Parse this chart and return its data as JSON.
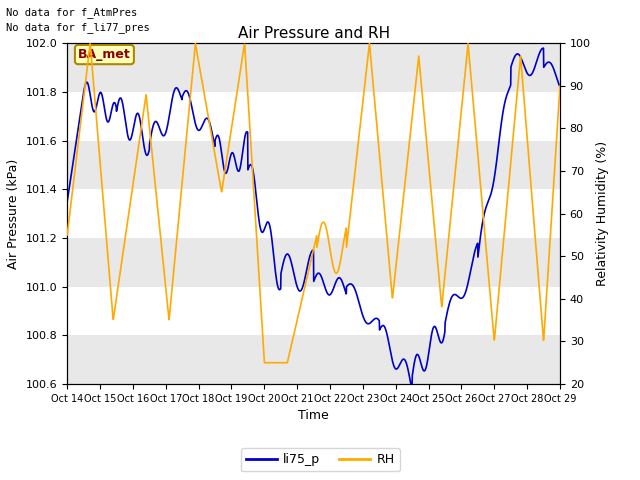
{
  "title": "Air Pressure and RH",
  "xlabel": "Time",
  "ylabel_left": "Air Pressure (kPa)",
  "ylabel_right": "Relativity Humidity (%)",
  "annotation_line1": "No data for f_AtmPres",
  "annotation_line2": "No data for f_li77_pres",
  "box_label": "BA_met",
  "ylim_left": [
    100.6,
    102.0
  ],
  "ylim_right": [
    20,
    100
  ],
  "yticks_left": [
    100.6,
    100.8,
    101.0,
    101.2,
    101.4,
    101.6,
    101.8,
    102.0
  ],
  "yticks_right": [
    20,
    30,
    40,
    50,
    60,
    70,
    80,
    90,
    100
  ],
  "xtick_labels": [
    "Oct 14",
    "Oct 15",
    "Oct 16",
    "Oct 17",
    "Oct 18",
    "Oct 19",
    "Oct 20",
    "Oct 21",
    "Oct 22",
    "Oct 23",
    "Oct 24",
    "Oct 25",
    "Oct 26",
    "Oct 27",
    "Oct 28",
    "Oct 29"
  ],
  "color_blue": "#0000cc",
  "color_orange": "#ffaa00",
  "legend_entries": [
    "li75_p",
    "RH"
  ],
  "background_gray": "#e8e8e8",
  "white_band_color": "#ffffff"
}
